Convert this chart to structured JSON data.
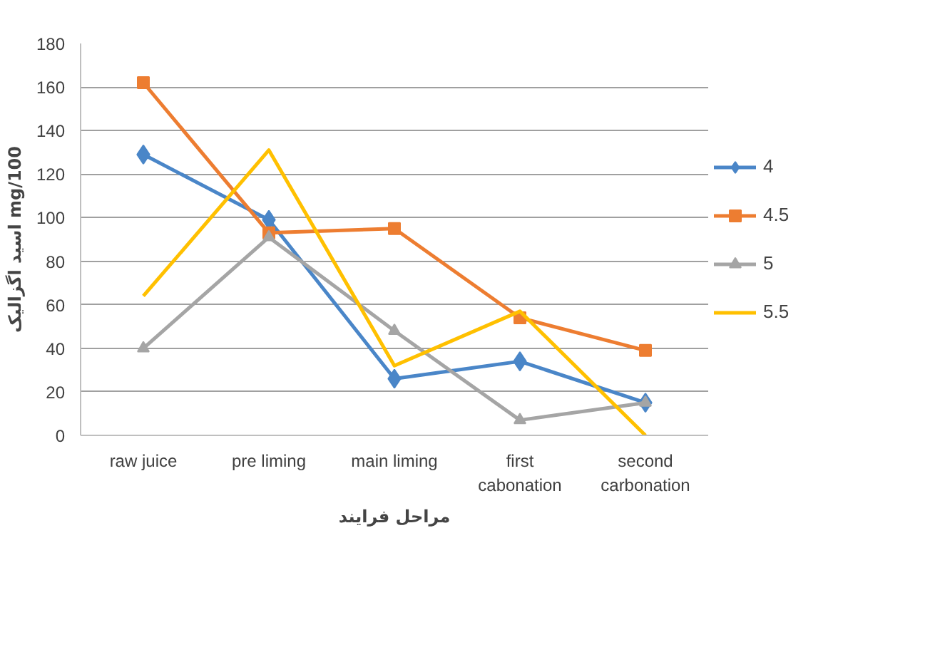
{
  "chart_data": {
    "type": "line",
    "ylabel": "اسید اگزالیک mg/100",
    "xlabel": "مراحل فرایند",
    "categories": [
      "raw juice",
      "pre liming",
      "main liming",
      "first\ncabonation",
      "second\ncarbonation"
    ],
    "series": [
      {
        "name": "4",
        "color": "#4a86c8",
        "values": [
          129,
          99,
          26,
          34,
          15
        ],
        "marker": "diamond"
      },
      {
        "name": "4.5",
        "color": "#ed7d31",
        "values": [
          162,
          93,
          95,
          54,
          39
        ],
        "marker": "square"
      },
      {
        "name": "5",
        "color": "#a5a5a5",
        "values": [
          40,
          91,
          48,
          7,
          15
        ],
        "marker": "triangle"
      },
      {
        "name": "5.5",
        "color": "#ffc000",
        "values": [
          64,
          131,
          32,
          57,
          0
        ],
        "marker": "none"
      }
    ],
    "ylim": [
      0,
      180
    ],
    "yticks": [
      0,
      20,
      40,
      60,
      80,
      100,
      120,
      140,
      160,
      180
    ],
    "grid": "y",
    "legend": "right"
  }
}
